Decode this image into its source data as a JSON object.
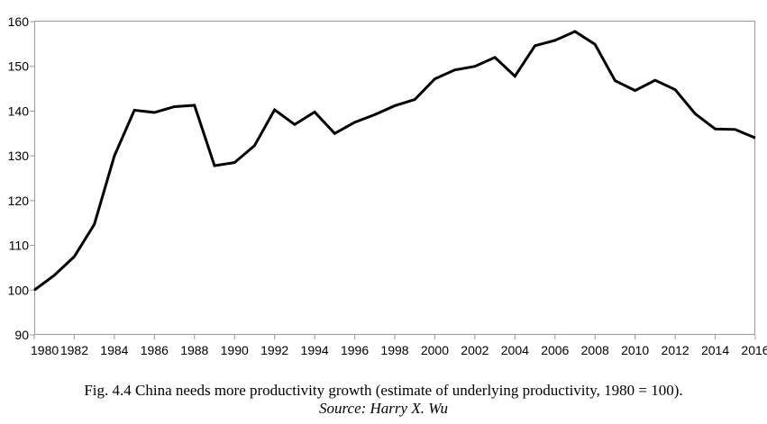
{
  "caption": {
    "title": "Fig. 4.4 China needs more productivity growth (estimate of underlying productivity, 1980 = 100).",
    "source": "Source: Harry X. Wu"
  },
  "chart_data": {
    "type": "line",
    "title": "",
    "xlabel": "",
    "ylabel": "",
    "xlim": [
      1980,
      2016
    ],
    "ylim": [
      90,
      160
    ],
    "x_ticks": [
      "1980",
      "1982",
      "1984",
      "1986",
      "1988",
      "1990",
      "1992",
      "1994",
      "1996",
      "1998",
      "2000",
      "2002",
      "2004",
      "2006",
      "2008",
      "2010",
      "2012",
      "2014",
      "2016"
    ],
    "y_ticks": [
      "90",
      "100",
      "110",
      "120",
      "130",
      "140",
      "150",
      "160"
    ],
    "grid": false,
    "series": [
      {
        "x": [
          1980,
          1981,
          1982,
          1983,
          1984,
          1985,
          1986,
          1987,
          1988,
          1989,
          1990,
          1991,
          1992,
          1993,
          1994,
          1995,
          1996,
          1997,
          1998,
          1999,
          2000,
          2001,
          2002,
          2003,
          2004,
          2005,
          2006,
          2007,
          2008,
          2009,
          2010,
          2011,
          2012,
          2013,
          2014,
          2015,
          2016
        ],
        "values": [
          100,
          103.3,
          107.5,
          114.7,
          130,
          140.2,
          139.7,
          141,
          141.3,
          127.8,
          128.5,
          132.3,
          140.3,
          137,
          139.8,
          135,
          137.5,
          139.2,
          141.2,
          142.6,
          147.2,
          149.2,
          150,
          152,
          147.8,
          154.6,
          155.8,
          157.8,
          154.9,
          146.8,
          144.6,
          146.9,
          144.8,
          139.4,
          136,
          135.9,
          134
        ],
        "color": "#000000"
      }
    ]
  }
}
